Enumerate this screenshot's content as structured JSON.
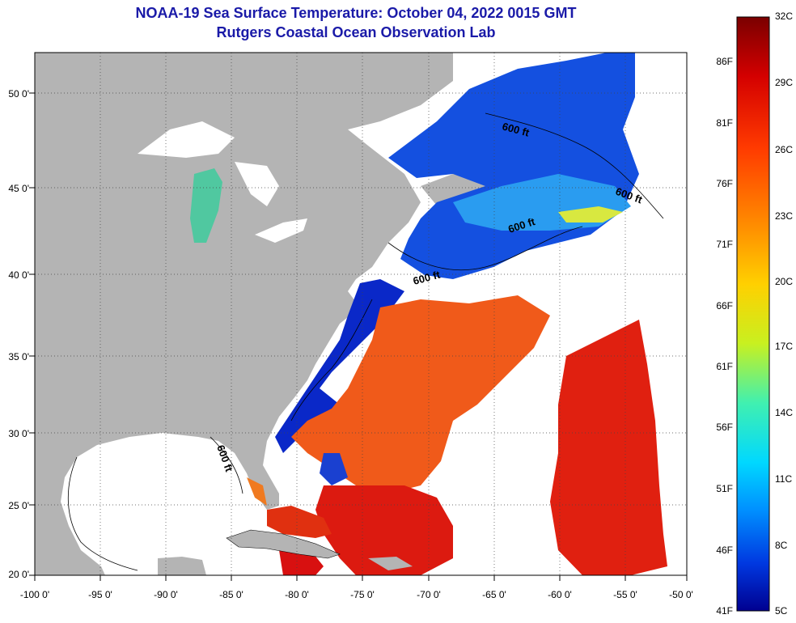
{
  "title": {
    "line1": "NOAA-19 Sea Surface Temperature:  October 04, 2022 0015 GMT",
    "line2": "Rutgers Coastal Ocean Observation Lab"
  },
  "map": {
    "lon_range": [
      -100,
      -50
    ],
    "lat_range": [
      20,
      52
    ],
    "lat_ticks": [
      "50 0'",
      "45 0'",
      "40 0'",
      "35 0'",
      "30 0'",
      "25 0'",
      "20 0'"
    ],
    "lon_ticks": [
      "-100 0'",
      "-95 0'",
      "-90 0'",
      "-85 0'",
      "-80 0'",
      "-75 0'",
      "-70 0'",
      "-65 0'",
      "-60 0'",
      "-55 0'",
      "-50 0'"
    ],
    "contour_label": "600 ft",
    "colors": {
      "land": "#b4b4b4",
      "cloud": "#ffffff",
      "cold": "#1030d0",
      "warm": "#e84a10",
      "hot": "#d81010"
    }
  },
  "colorbar": {
    "celsius": [
      "32C",
      "29C",
      "26C",
      "23C",
      "20C",
      "17C",
      "14C",
      "11C",
      "8C",
      "5C"
    ],
    "fahrenheit": [
      "86F",
      "81F",
      "76F",
      "71F",
      "66F",
      "61F",
      "56F",
      "51F",
      "46F",
      "41F"
    ],
    "colors": [
      "#7a0000",
      "#d40000",
      "#ff3a00",
      "#ff8c00",
      "#ffd000",
      "#c8f020",
      "#40f0b0",
      "#00d8ff",
      "#0090ff",
      "#0038e0",
      "#000090"
    ]
  }
}
